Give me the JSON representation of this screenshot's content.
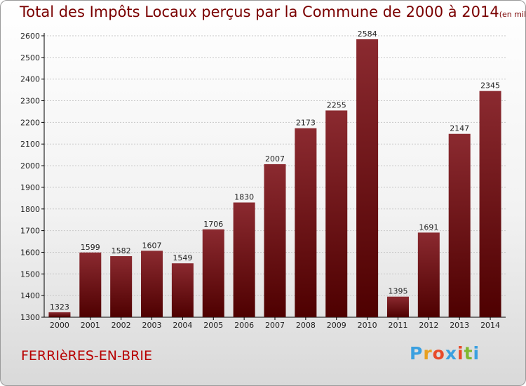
{
  "title": "Total des Impôts Locaux perçus par la Commune de 2000 à 2014",
  "unit": "(en milliers d'€)",
  "commune": "FERRIèRES-EN-BRIE",
  "brand": {
    "letters": [
      "P",
      "r",
      "o",
      "x",
      "i",
      "t",
      "i"
    ],
    "colors": [
      "#3aa0e0",
      "#e8a020",
      "#e84a2a",
      "#3aa0e0",
      "#e84a2a",
      "#80b830",
      "#3aa0e0"
    ]
  },
  "chart_data": {
    "type": "bar",
    "categories": [
      "2000",
      "2001",
      "2002",
      "2003",
      "2004",
      "2005",
      "2006",
      "2007",
      "2008",
      "2009",
      "2010",
      "2011",
      "2012",
      "2013",
      "2014"
    ],
    "values": [
      1323,
      1599,
      1582,
      1607,
      1549,
      1706,
      1830,
      2007,
      2173,
      2255,
      2584,
      1395,
      1691,
      2147,
      2345
    ],
    "ylim": [
      1300,
      2600
    ],
    "yticks": [
      1300,
      1400,
      1500,
      1600,
      1700,
      1800,
      1900,
      2000,
      2100,
      2200,
      2300,
      2400,
      2500,
      2600
    ],
    "grid": true,
    "bar_color_top": "#8b2a30",
    "bar_color_bottom": "#4e0000",
    "xlabel": "",
    "ylabel": ""
  }
}
